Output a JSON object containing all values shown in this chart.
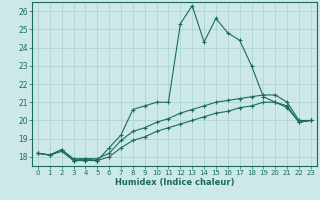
{
  "xlabel": "Humidex (Indice chaleur)",
  "ylabel": "",
  "bg_color": "#cce8e8",
  "line_color": "#1a6b5e",
  "grid_color": "#aacfcf",
  "xlim": [
    -0.5,
    23.5
  ],
  "ylim": [
    17.5,
    26.5
  ],
  "xticks": [
    0,
    1,
    2,
    3,
    4,
    5,
    6,
    7,
    8,
    9,
    10,
    11,
    12,
    13,
    14,
    15,
    16,
    17,
    18,
    19,
    20,
    21,
    22,
    23
  ],
  "yticks": [
    18,
    19,
    20,
    21,
    22,
    23,
    24,
    25,
    26
  ],
  "series1_x": [
    0,
    1,
    2,
    3,
    4,
    5,
    6,
    7,
    8,
    9,
    10,
    11,
    12,
    13,
    14,
    15,
    16,
    17,
    18,
    19,
    20,
    21,
    22,
    23
  ],
  "series1_y": [
    18.2,
    18.1,
    18.4,
    17.8,
    17.8,
    17.8,
    18.5,
    19.2,
    20.6,
    20.8,
    21.0,
    21.0,
    25.3,
    26.3,
    24.3,
    25.6,
    24.8,
    24.4,
    23.0,
    21.3,
    21.0,
    20.8,
    19.9,
    20.0
  ],
  "series2_x": [
    0,
    1,
    2,
    3,
    4,
    5,
    6,
    7,
    8,
    9,
    10,
    11,
    12,
    13,
    14,
    15,
    16,
    17,
    18,
    19,
    20,
    21,
    22,
    23
  ],
  "series2_y": [
    18.2,
    18.1,
    18.4,
    17.9,
    17.9,
    17.9,
    18.2,
    18.9,
    19.4,
    19.6,
    19.9,
    20.1,
    20.4,
    20.6,
    20.8,
    21.0,
    21.1,
    21.2,
    21.3,
    21.4,
    21.4,
    21.0,
    20.0,
    20.0
  ],
  "series3_x": [
    0,
    1,
    2,
    3,
    4,
    5,
    6,
    7,
    8,
    9,
    10,
    11,
    12,
    13,
    14,
    15,
    16,
    17,
    18,
    19,
    20,
    21,
    22,
    23
  ],
  "series3_y": [
    18.2,
    18.1,
    18.3,
    17.8,
    17.9,
    17.8,
    18.0,
    18.5,
    18.9,
    19.1,
    19.4,
    19.6,
    19.8,
    20.0,
    20.2,
    20.4,
    20.5,
    20.7,
    20.8,
    21.0,
    21.0,
    20.7,
    19.9,
    20.0
  ]
}
